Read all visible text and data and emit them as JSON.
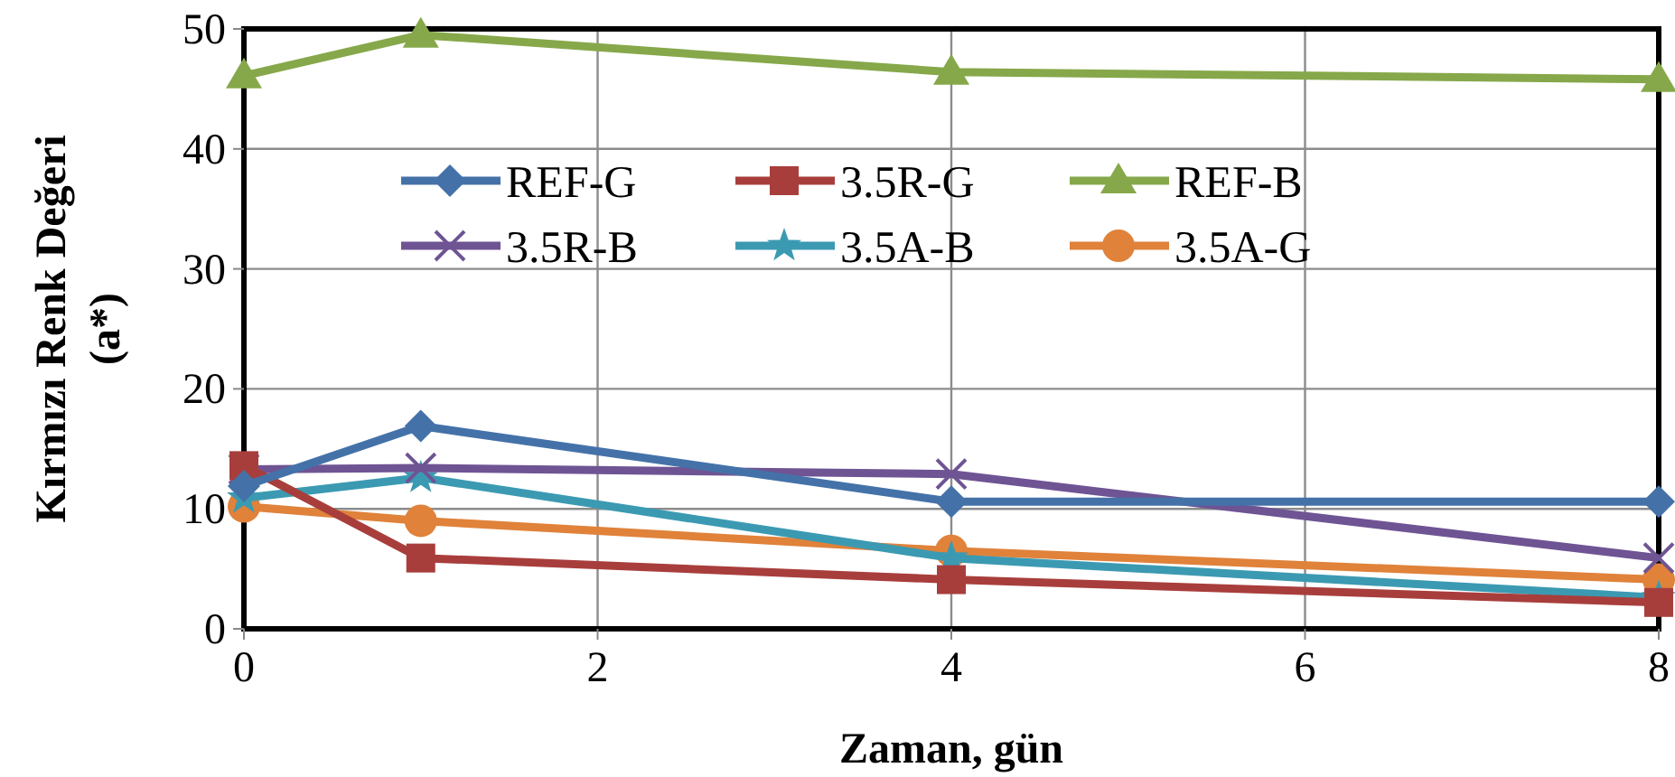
{
  "chart_data": {
    "type": "line",
    "xlabel": "Zaman, gün",
    "ylabel": "Kırmızı Renk Değeri (a*)",
    "x": [
      0,
      1,
      4,
      8
    ],
    "xlim": [
      0,
      8
    ],
    "xticks": [
      0,
      2,
      4,
      6,
      8
    ],
    "ylim": [
      0,
      50
    ],
    "yticks": [
      0,
      10,
      20,
      30,
      40,
      50
    ],
    "grid": true,
    "legend": "top",
    "line_style": "solid",
    "series": [
      {
        "name": "REF-G",
        "color": "#4472a8",
        "marker": "diamond",
        "values": [
          11.9,
          16.9,
          10.6,
          10.6
        ]
      },
      {
        "name": "3.5R-G",
        "color": "#a83e3c",
        "marker": "square",
        "values": [
          13.6,
          5.9,
          4.1,
          2.2
        ]
      },
      {
        "name": "REF-B",
        "color": "#86a84a",
        "marker": "triangle",
        "values": [
          46.1,
          49.5,
          46.4,
          45.8
        ]
      },
      {
        "name": "3.5R-B",
        "color": "#6f5494",
        "marker": "cross",
        "values": [
          13.3,
          13.4,
          12.9,
          5.9
        ]
      },
      {
        "name": "3.5A-B",
        "color": "#3b9ab2",
        "marker": "star",
        "values": [
          10.9,
          12.6,
          5.9,
          2.6
        ]
      },
      {
        "name": "3.5A-G",
        "color": "#e0823a",
        "marker": "circle",
        "values": [
          10.2,
          9.0,
          6.5,
          4.1
        ]
      }
    ]
  }
}
